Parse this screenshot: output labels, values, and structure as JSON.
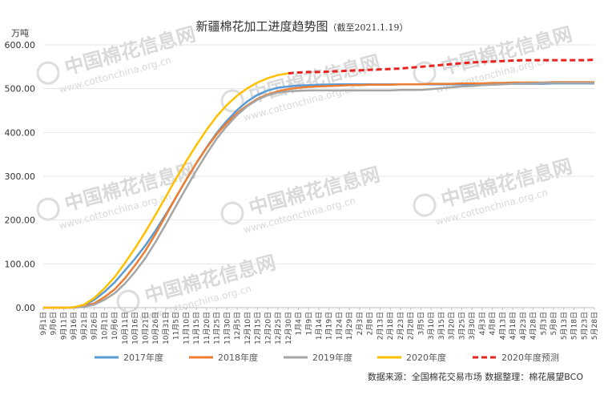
{
  "chart_data": {
    "type": "line",
    "title": "新疆棉花加工进度趋势图",
    "subtitle": "（截至2021.1.19）",
    "ylabel": "万吨",
    "ylim": [
      0,
      600
    ],
    "yticks": [
      "0.00",
      "100.00",
      "200.00",
      "300.00",
      "400.00",
      "500.00",
      "600.00"
    ],
    "x": [
      "9月1日",
      "9月6日",
      "9月11日",
      "9月16日",
      "9月21日",
      "9月26日",
      "10月1日",
      "10月6日",
      "10月11日",
      "10月16日",
      "10月21日",
      "10月26日",
      "10月31日",
      "11月5日",
      "11月10日",
      "11月15日",
      "11月20日",
      "11月25日",
      "11月30日",
      "12月5日",
      "12月10日",
      "12月15日",
      "12月20日",
      "12月25日",
      "12月30日",
      "1月4日",
      "1月9日",
      "1月14日",
      "1月19日",
      "1月24日",
      "1月29日",
      "2月3日",
      "2月8日",
      "2月13日",
      "2月18日",
      "2月23日",
      "2月28日",
      "3月5日",
      "3月10日",
      "3月15日",
      "3月20日",
      "3月25日",
      "3月30日",
      "4月3日",
      "4月8日",
      "4月13日",
      "4月18日",
      "4月23日",
      "4月28日",
      "5月3日",
      "5月8日",
      "5月13日",
      "5月18日",
      "5月23日",
      "5月28日"
    ],
    "series": [
      {
        "name": "2017年度",
        "color": "#5b9bd5",
        "dash": "solid",
        "values": [
          0,
          0,
          0,
          1,
          5,
          18,
          36,
          58,
          85,
          112,
          142,
          176,
          213,
          252,
          292,
          330,
          366,
          399,
          427,
          451,
          471,
          486,
          496,
          502,
          505,
          507,
          508,
          509,
          509.5,
          510,
          510,
          510,
          510,
          510,
          510,
          510,
          510,
          510,
          510,
          510,
          510,
          510,
          510,
          510,
          511,
          511,
          511,
          511,
          511,
          511,
          512,
          512,
          512,
          512,
          512
        ]
      },
      {
        "name": "2018年度",
        "color": "#ed7d31",
        "dash": "solid",
        "values": [
          0,
          0,
          0,
          0,
          3,
          10,
          24,
          42,
          67,
          97,
          130,
          168,
          210,
          252,
          292,
          330,
          365,
          396,
          422,
          444,
          462,
          477,
          487,
          494,
          499,
          502,
          504,
          505,
          506,
          507,
          508,
          508,
          509,
          509,
          509,
          510,
          510,
          510,
          511,
          511,
          511,
          512,
          512,
          512,
          513,
          513,
          514,
          514,
          514,
          514,
          515,
          515,
          515,
          515,
          515
        ]
      },
      {
        "name": "2019年度",
        "color": "#a5a5a5",
        "dash": "solid",
        "values": [
          0,
          0,
          0,
          0,
          2,
          7,
          18,
          33,
          55,
          82,
          113,
          150,
          190,
          232,
          273,
          313,
          351,
          386,
          415,
          440,
          460,
          475,
          485,
          491,
          494,
          495,
          496,
          496,
          496,
          496,
          496,
          496,
          496,
          496,
          496,
          497,
          497,
          497,
          499,
          501,
          503,
          505,
          506,
          508,
          509,
          510,
          511,
          512,
          512,
          513,
          513,
          513,
          513,
          513,
          513
        ]
      },
      {
        "name": "2020年度",
        "color": "#ffc000",
        "dash": "solid",
        "values": [
          0,
          0,
          0,
          1,
          7,
          22,
          44,
          70,
          102,
          136,
          173,
          212,
          253,
          294,
          334,
          371,
          406,
          437,
          463,
          484,
          501,
          514,
          524,
          531,
          535,
          null,
          null,
          null,
          null,
          null,
          null,
          null,
          null,
          null,
          null,
          null,
          null,
          null,
          null,
          null,
          null,
          null,
          null,
          null,
          null,
          null,
          null,
          null,
          null,
          null,
          null,
          null,
          null,
          null,
          null
        ]
      },
      {
        "name": "2020年度预测",
        "color": "#e8231f",
        "dash": "dashed",
        "values": [
          null,
          null,
          null,
          null,
          null,
          null,
          null,
          null,
          null,
          null,
          null,
          null,
          null,
          null,
          null,
          null,
          null,
          null,
          null,
          null,
          null,
          null,
          null,
          null,
          535,
          537,
          538,
          538,
          539,
          540,
          541,
          542,
          543,
          544,
          545,
          546,
          548,
          550,
          552,
          554,
          556,
          558,
          560,
          561,
          562,
          563,
          564,
          565,
          565,
          565,
          565,
          565,
          565,
          565,
          566
        ]
      }
    ],
    "grid": "horizontal",
    "legend": "bottom"
  },
  "watermark": {
    "brand": "中国棉花信息网",
    "url": "www.cottonchina.org.cn"
  },
  "source_note": "数据来源：全国棉花交易市场 数据整理：棉花展望BCO"
}
